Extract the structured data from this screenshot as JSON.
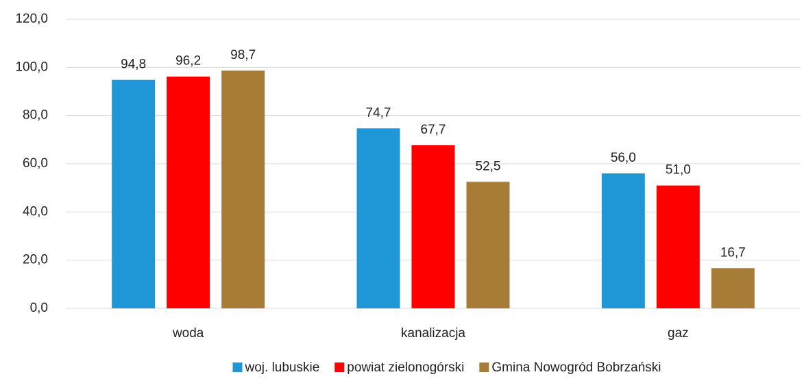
{
  "chart_data": {
    "type": "bar",
    "categories": [
      "woda",
      "kanalizacja",
      "gaz"
    ],
    "series": [
      {
        "name": "woj. lubuskie",
        "color": "#1f97d6",
        "values": [
          94.8,
          74.7,
          56.0
        ],
        "value_labels": [
          "94,8",
          "74,7",
          "56,0"
        ]
      },
      {
        "name": "powiat zielonogórski",
        "color": "#ff0000",
        "values": [
          96.2,
          67.7,
          51.0
        ],
        "value_labels": [
          "96,2",
          "67,7",
          "51,0"
        ]
      },
      {
        "name": "Gmina Nowogród Bobrzański",
        "color": "#a67c37",
        "values": [
          98.7,
          52.5,
          16.7
        ],
        "value_labels": [
          "98,7",
          "52,5",
          "16,7"
        ]
      }
    ],
    "ylim": [
      0,
      120
    ],
    "yticks": [
      {
        "value": 0,
        "label": "0,0"
      },
      {
        "value": 20,
        "label": "20,0"
      },
      {
        "value": 40,
        "label": "40,0"
      },
      {
        "value": 60,
        "label": "60,0"
      },
      {
        "value": 80,
        "label": "80,0"
      },
      {
        "value": 100,
        "label": "100,0"
      },
      {
        "value": 120,
        "label": "120,0"
      }
    ],
    "grid": true,
    "legend": "bottom"
  }
}
